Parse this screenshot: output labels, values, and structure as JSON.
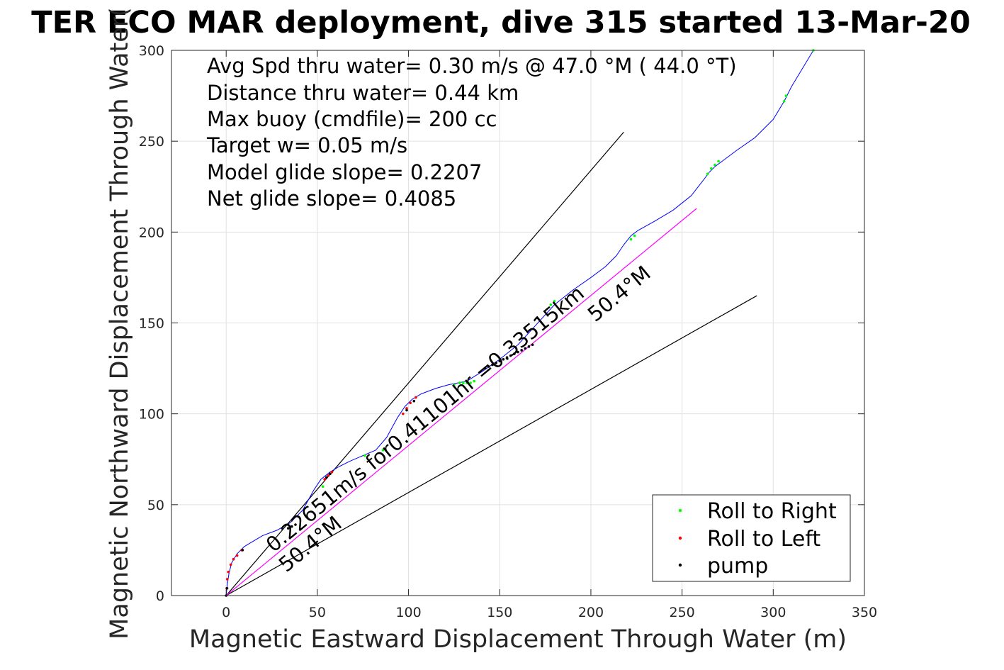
{
  "chart_data": {
    "type": "line",
    "title": "TER ECO MAR deployment, dive 315 started 13-Mar-20",
    "xlabel": "Magnetic Eastward Displacement Through Water (m)",
    "ylabel": "Magnetic Northward Displacement Through Water(",
    "xlim": [
      -30,
      350
    ],
    "ylim": [
      0,
      300
    ],
    "xticks": [
      0,
      50,
      100,
      150,
      200,
      250,
      300,
      350
    ],
    "yticks": [
      0,
      50,
      100,
      150,
      200,
      250,
      300
    ],
    "grid": true,
    "annotations": [
      "Avg Spd thru water=  0.30 m/s @  47.0 °M ( 44.0 °T)",
      "Distance thru water=  0.44 km",
      "Max buoy (cmdfile)= 200 cc",
      "Target w= 0.05 m/s",
      "Model glide slope= 0.2207",
      "Net glide slope= 0.4085"
    ],
    "segment_label": "0.22651m/s for0.41101hr =0.33515km",
    "heading_labels": [
      "50.4°M",
      "50.4°M"
    ],
    "colors": {
      "track": "#0000ff",
      "mean_heading": "#ff00ff",
      "envelope": "#000000",
      "roll_right": "#00ff00",
      "roll_left": "#ff0000",
      "pump": "#000000",
      "grid": "#e0e0e0"
    },
    "series": [
      {
        "name": "track",
        "x": [
          0,
          0.5,
          1.5,
          3,
          6,
          10,
          15,
          20,
          28,
          35,
          42,
          48,
          52,
          57,
          62,
          68,
          75,
          82,
          88,
          94,
          98,
          102,
          107,
          115,
          122,
          127,
          132,
          140,
          150,
          160,
          170,
          180,
          190,
          200,
          208,
          214,
          218,
          222,
          226,
          235,
          245,
          255,
          262,
          265,
          268,
          272,
          280,
          290,
          300,
          306,
          310,
          316,
          322
        ],
        "y": [
          0,
          5,
          12,
          18,
          23,
          27,
          30,
          33,
          36,
          40,
          47,
          58,
          64,
          68,
          71,
          74,
          77,
          80,
          87,
          98,
          104,
          108,
          111,
          114,
          116,
          117,
          118,
          123,
          130,
          138,
          149,
          160,
          168,
          175,
          181,
          187,
          193,
          198,
          201,
          206,
          212,
          220,
          229,
          233,
          236,
          239,
          245,
          252,
          262,
          272,
          280,
          290,
          300
        ]
      },
      {
        "name": "mean heading",
        "x": [
          0,
          258
        ],
        "y": [
          0,
          213
        ]
      },
      {
        "name": "glide envelope",
        "lines": [
          {
            "x": [
              0,
              218
            ],
            "y": [
              0,
              255
            ]
          },
          {
            "x": [
              0,
              291
            ],
            "y": [
              0,
              165
            ]
          }
        ]
      },
      {
        "name": "Roll to Right",
        "x": [
          53,
          76,
          86,
          125,
          128,
          130,
          132,
          134,
          136,
          178,
          180,
          222,
          224,
          264,
          266,
          268,
          270,
          306,
          307,
          322
        ],
        "y": [
          60,
          77,
          80,
          116,
          117,
          117,
          117,
          117,
          118,
          160,
          162,
          196,
          198,
          232,
          235,
          237,
          239,
          272,
          275,
          300
        ]
      },
      {
        "name": "Roll to Left",
        "x": [
          0.3,
          0.6,
          1.2,
          2.5,
          4,
          6,
          8.5,
          54,
          56,
          58,
          97,
          99,
          101,
          104
        ],
        "y": [
          4,
          9,
          13,
          17,
          20,
          22,
          25,
          64,
          66,
          68,
          100,
          103,
          106,
          109
        ]
      },
      {
        "name": "pump",
        "x": [
          0,
          0.5,
          9,
          34,
          36,
          38,
          55,
          57,
          99,
          103,
          142,
          144,
          146,
          148,
          150,
          152,
          154,
          156,
          158,
          160,
          162,
          164,
          166,
          168
        ],
        "y": [
          0,
          4,
          25,
          37,
          38,
          39,
          65,
          67,
          102,
          107,
          125,
          126,
          127,
          128,
          129,
          130,
          131,
          132,
          133,
          134,
          135,
          136,
          137,
          138
        ]
      }
    ],
    "legend": {
      "position": "bottom-right",
      "entries": [
        "Roll to Right",
        "Roll to Left",
        "pump"
      ]
    }
  }
}
